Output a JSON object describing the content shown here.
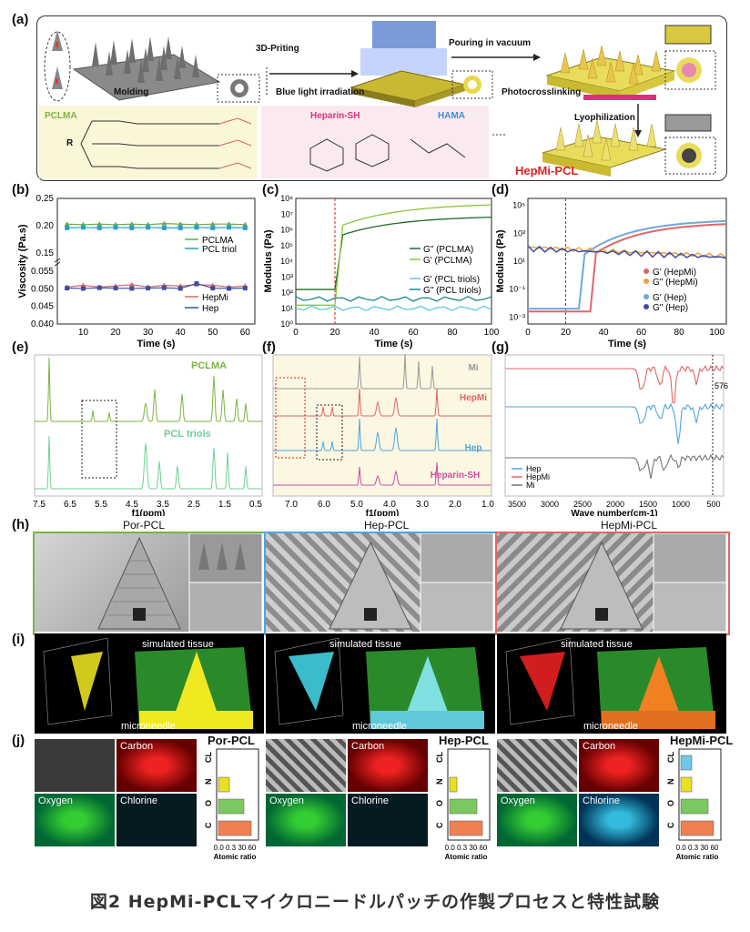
{
  "panels": {
    "a": "(a)",
    "b": "(b)",
    "c": "(c)",
    "d": "(d)",
    "e": "(e)",
    "f": "(f)",
    "g": "(g)",
    "h": "(h)",
    "i": "(i)",
    "j": "(j)"
  },
  "panel_a": {
    "molding": "Molding",
    "printing": "3D-Priting",
    "blue_light": "Blue light irradiation",
    "pouring": "Pouring in vacuum",
    "photocross": "Photocrosslinking",
    "lyophilization": "Lyophilization",
    "pclma": "PCLMA",
    "heparin_sh": "Heparin-SH",
    "hama": "HAMA",
    "hepmi_pcl": "HepMi-PCL",
    "r_label": "R"
  },
  "chart_data": [
    {
      "panel": "b",
      "type": "line",
      "xlabel": "Time (s)",
      "ylabel": "Viscosity (Pa.s)",
      "x": [
        5,
        10,
        15,
        20,
        25,
        30,
        35,
        40,
        45,
        50,
        55,
        60
      ],
      "xticks": [
        "10",
        "20",
        "30",
        "40",
        "50",
        "60"
      ],
      "yticks_top": [
        "0.25",
        "0.20",
        "0.15"
      ],
      "yticks_bottom": [
        "0.055",
        "0.050",
        "0.045",
        "0.040"
      ],
      "series": [
        {
          "name": "PCLMA",
          "color": "#6aa84f",
          "values": [
            0.203,
            0.202,
            0.203,
            0.202,
            0.203,
            0.202,
            0.204,
            0.203,
            0.202,
            0.203,
            0.203,
            0.202
          ]
        },
        {
          "name": "PCL triol",
          "color": "#29a0c4",
          "values": [
            0.196,
            0.197,
            0.196,
            0.197,
            0.196,
            0.197,
            0.196,
            0.196,
            0.197,
            0.196,
            0.197,
            0.196
          ]
        },
        {
          "name": "HepMi",
          "color": "#e06666",
          "values": [
            0.0505,
            0.051,
            0.0505,
            0.0508,
            0.0512,
            0.0505,
            0.051,
            0.0508,
            0.0512,
            0.051,
            0.0505,
            0.0508
          ]
        },
        {
          "name": "Hep",
          "color": "#3c4fa0",
          "values": [
            0.0502,
            0.0501,
            0.0503,
            0.0502,
            0.0501,
            0.0502,
            0.0503,
            0.0501,
            0.0515,
            0.0502,
            0.0501,
            0.0502
          ]
        }
      ]
    },
    {
      "panel": "c",
      "type": "line",
      "xlabel": "Time (s)",
      "ylabel": "Modulus (Pa)",
      "xticks": [
        "0",
        "20",
        "40",
        "60",
        "80",
        "100"
      ],
      "yticks": [
        "10⁸",
        "10⁷",
        "10⁶",
        "10⁵",
        "10⁴",
        "10³",
        "10²",
        "10¹",
        "10⁰"
      ],
      "series": [
        {
          "name": "G\" (PCLMA)",
          "color": "#1e6b2a"
        },
        {
          "name": "G' (PCLMA)",
          "color": "#8cc63f"
        },
        {
          "name": "G' (PCL triols)",
          "color": "#5ac8e0"
        },
        {
          "name": "G\" (PCL triols)",
          "color": "#1a8a8a"
        }
      ]
    },
    {
      "panel": "d",
      "type": "line",
      "xlabel": "Time (s)",
      "ylabel": "Modulus (Pa)",
      "xticks": [
        "0",
        "20",
        "40",
        "60",
        "80",
        "100"
      ],
      "yticks": [
        "10⁵",
        "10³",
        "10¹",
        "10⁻¹",
        "10⁻³"
      ],
      "series": [
        {
          "name": "G' (HepMi)",
          "color": "#e06666"
        },
        {
          "name": "G\" (HepMi)",
          "color": "#f0a040"
        },
        {
          "name": "G' (Hep)",
          "color": "#6fa8dc"
        },
        {
          "name": "G\" (Hep)",
          "color": "#3c4fa0"
        }
      ]
    },
    {
      "panel": "e",
      "type": "line",
      "xlabel": "f1(ppm)",
      "xticks": [
        "7.5",
        "6.5",
        "5.5",
        "4.5",
        "3.5",
        "2.5",
        "1.5",
        "0.5"
      ],
      "series": [
        {
          "name": "PCLMA",
          "color": "#7cb342"
        },
        {
          "name": "PCL triols",
          "color": "#6fcf97"
        }
      ]
    },
    {
      "panel": "f",
      "type": "line",
      "xlabel": "f1(ppm)",
      "xticks": [
        "7.0",
        "6.0",
        "5.0",
        "4.0",
        "3.0",
        "2.0",
        "1.0"
      ],
      "series": [
        {
          "name": "Mi",
          "color": "#999999"
        },
        {
          "name": "HepMi",
          "color": "#e06666"
        },
        {
          "name": "Hep",
          "color": "#4da6e0"
        },
        {
          "name": "Heparin-SH",
          "color": "#c84fa0"
        }
      ]
    },
    {
      "panel": "g",
      "type": "line",
      "xlabel": "Wave number(cm-1)",
      "xticks": [
        "3500",
        "3000",
        "2500",
        "2000",
        "1500",
        "1000",
        "500"
      ],
      "annotation": "576",
      "series": [
        {
          "name": "Hep",
          "color": "#4da6e0"
        },
        {
          "name": "HepMi",
          "color": "#e06666"
        },
        {
          "name": "Mi",
          "color": "#777777"
        }
      ]
    }
  ],
  "panel_h": {
    "titles": [
      "Por-PCL",
      "Hep-PCL",
      "HepMi-PCL"
    ]
  },
  "panel_i": {
    "simulated": "simulated tissue",
    "microneedle": "microneedle"
  },
  "panel_j": {
    "titles": [
      "Por-PCL",
      "Hep-PCL",
      "HepMi-PCL"
    ],
    "maps": [
      "Carbon",
      "Oxygen",
      "Chlorine"
    ],
    "elements": [
      "CL",
      "N",
      "O",
      "C"
    ],
    "xticks": "0.0 0.3   30 60",
    "xlabel": "Atomic ratio",
    "bars": [
      {
        "CL": 0,
        "N": 0.3,
        "O": 0.7,
        "C": 0.9
      },
      {
        "CL": 0,
        "N": 0.2,
        "O": 0.75,
        "C": 0.9
      },
      {
        "CL": 0.3,
        "N": 0.3,
        "O": 0.75,
        "C": 0.9
      }
    ]
  },
  "caption": "図2 HepMi-PCLマイクロニードルパッチの作製プロセスと特性試験"
}
